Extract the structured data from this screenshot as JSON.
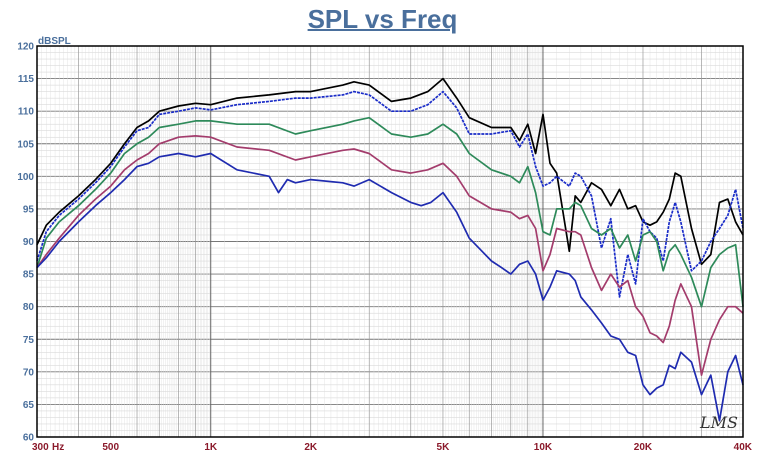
{
  "chart_data": {
    "type": "line",
    "title": "SPL vs Freq",
    "ylabel": "dBSPL",
    "xlabel": "",
    "xscale": "log",
    "xlim": [
      300,
      40000
    ],
    "ylim": [
      60,
      120
    ],
    "grid": true,
    "legend": "none",
    "yticks": [
      60,
      65,
      70,
      75,
      80,
      85,
      90,
      95,
      100,
      105,
      110,
      115,
      120
    ],
    "xtick_labels": [
      {
        "x": 300,
        "label": "300"
      },
      {
        "x": 500,
        "label": "500"
      },
      {
        "x": 1000,
        "label": "1K"
      },
      {
        "x": 2000,
        "label": "2K"
      },
      {
        "x": 5000,
        "label": "5K"
      },
      {
        "x": 10000,
        "label": "10K"
      },
      {
        "x": 20000,
        "label": "20K"
      },
      {
        "x": 40000,
        "label": "40K"
      }
    ],
    "x_unit_label": "Hz",
    "watermark": "LMS",
    "series": [
      {
        "color": "#000000",
        "x": [
          300,
          320,
          350,
          400,
          450,
          500,
          550,
          600,
          650,
          700,
          800,
          900,
          1000,
          1200,
          1500,
          1800,
          2000,
          2500,
          2700,
          3000,
          3500,
          4000,
          4500,
          5000,
          5500,
          6000,
          7000,
          8000,
          8500,
          9000,
          9500,
          10000,
          10500,
          11000,
          12000,
          12500,
          13000,
          14000,
          15000,
          16000,
          17000,
          18000,
          19000,
          20000,
          21000,
          22000,
          23000,
          24000,
          25000,
          26000,
          28000,
          30000,
          32000,
          34000,
          36000,
          38000,
          40000
        ],
        "y": [
          89.5,
          92.5,
          94.5,
          97,
          99.5,
          102,
          105,
          107.5,
          108.5,
          110,
          110.8,
          111.2,
          111,
          112,
          112.5,
          113,
          113,
          114,
          114.5,
          114,
          111.5,
          112,
          113,
          115,
          112,
          109,
          107.5,
          107.5,
          105.5,
          108,
          103.5,
          109.5,
          102,
          100.5,
          88.5,
          97,
          96,
          99,
          98,
          95.5,
          98,
          95,
          95.5,
          93,
          92.5,
          93,
          94.5,
          96.5,
          100.5,
          100,
          92,
          86.5,
          88,
          96,
          96.5,
          93,
          91
        ]
      },
      {
        "color": "#1a2cc8",
        "x": [
          300,
          320,
          350,
          400,
          450,
          500,
          550,
          600,
          650,
          700,
          800,
          900,
          1000,
          1200,
          1500,
          1800,
          2000,
          2500,
          2700,
          3000,
          3500,
          4000,
          4500,
          5000,
          5500,
          6000,
          7000,
          8000,
          8500,
          9000,
          9500,
          10000,
          10500,
          11000,
          12000,
          12500,
          13000,
          14000,
          15000,
          16000,
          17000,
          18000,
          19000,
          20000,
          21000,
          22000,
          23000,
          24000,
          25000,
          26000,
          28000,
          30000,
          32000,
          34000,
          36000,
          38000,
          40000
        ],
        "y": [
          87,
          91.5,
          94,
          96.5,
          99,
          101.5,
          104.5,
          107,
          107.5,
          109.5,
          110,
          110.5,
          110.2,
          111,
          111.5,
          112,
          112,
          112.5,
          113,
          112.5,
          110,
          110,
          111,
          113,
          110.5,
          106.5,
          106.5,
          107,
          104.5,
          106.5,
          101.5,
          98.5,
          99,
          100,
          98.5,
          100.5,
          100,
          97,
          89,
          93.5,
          81.5,
          88,
          83.5,
          93.5,
          91.5,
          90.5,
          87,
          93,
          96,
          93,
          85.5,
          87,
          90,
          92,
          94,
          98,
          92
        ]
      },
      {
        "color": "#2e8a5a",
        "x": [
          300,
          320,
          350,
          400,
          450,
          500,
          550,
          600,
          650,
          700,
          800,
          900,
          1000,
          1200,
          1500,
          1800,
          2000,
          2500,
          2700,
          3000,
          3500,
          4000,
          4500,
          5000,
          5500,
          6000,
          7000,
          8000,
          8500,
          9000,
          9500,
          10000,
          10500,
          11000,
          12000,
          12500,
          13000,
          14000,
          15000,
          16000,
          17000,
          18000,
          19000,
          20000,
          21000,
          22000,
          23000,
          24000,
          25000,
          26000,
          28000,
          30000,
          32000,
          34000,
          36000,
          38000,
          40000
        ],
        "y": [
          86,
          90.5,
          93,
          95.5,
          98,
          100.5,
          103.5,
          105,
          106,
          107.5,
          108,
          108.5,
          108.5,
          108,
          108,
          106.5,
          107,
          108,
          108.5,
          109,
          106.5,
          106,
          106.5,
          108,
          106.5,
          103.5,
          101,
          100,
          99,
          101.5,
          97.5,
          91.5,
          91,
          95,
          95,
          96,
          95.5,
          92,
          91,
          92,
          89,
          91,
          87,
          91,
          91.5,
          90,
          85.5,
          88.5,
          89.5,
          88,
          84.5,
          80,
          86,
          88,
          89,
          89.5,
          80
        ]
      },
      {
        "color": "#a33c6c",
        "x": [
          300,
          320,
          350,
          400,
          450,
          500,
          550,
          600,
          650,
          700,
          800,
          900,
          1000,
          1200,
          1500,
          1800,
          2000,
          2500,
          2700,
          3000,
          3500,
          4000,
          4500,
          5000,
          5500,
          6000,
          7000,
          8000,
          8500,
          9000,
          9500,
          10000,
          10500,
          11000,
          12000,
          12500,
          13000,
          14000,
          15000,
          16000,
          17000,
          18000,
          19000,
          20000,
          21000,
          22000,
          23000,
          24000,
          25000,
          26000,
          28000,
          30000,
          32000,
          34000,
          36000,
          38000,
          40000
        ],
        "y": [
          86,
          88,
          90.5,
          94,
          96.5,
          98.5,
          101,
          102.5,
          103.5,
          105,
          106,
          106.2,
          106,
          104.5,
          104,
          102.5,
          103,
          104,
          104.2,
          103.5,
          101,
          100.5,
          101,
          102,
          100,
          97,
          95,
          94.5,
          93.5,
          94,
          92,
          85.5,
          88,
          92,
          91.5,
          91.5,
          91,
          86,
          82.5,
          85,
          83,
          84,
          80,
          78.5,
          76,
          75.5,
          74.5,
          77,
          81,
          83.5,
          80,
          69.5,
          75,
          78,
          80,
          80,
          79
        ]
      },
      {
        "color": "#1f2bb0",
        "x": [
          300,
          320,
          350,
          400,
          450,
          500,
          550,
          600,
          650,
          700,
          800,
          900,
          1000,
          1200,
          1500,
          1600,
          1700,
          1800,
          2000,
          2500,
          2700,
          3000,
          3500,
          4000,
          4300,
          4600,
          5000,
          5500,
          6000,
          7000,
          7500,
          8000,
          8500,
          9000,
          9500,
          10000,
          10500,
          11000,
          12000,
          12500,
          13000,
          14000,
          15000,
          16000,
          17000,
          18000,
          19000,
          20000,
          21000,
          22000,
          23000,
          24000,
          25000,
          26000,
          28000,
          30000,
          32000,
          34000,
          36000,
          38000,
          40000
        ],
        "y": [
          86,
          87.5,
          90,
          93,
          95.5,
          97.5,
          99.5,
          101.5,
          102,
          103,
          103.5,
          103,
          103.5,
          101,
          100,
          97.5,
          99.5,
          99,
          99.5,
          99,
          98.5,
          99.5,
          97.5,
          96,
          95.5,
          96,
          97.5,
          94.5,
          90.5,
          87,
          86,
          85,
          86.5,
          87,
          85,
          81,
          83,
          85.5,
          85,
          84,
          81.5,
          79.5,
          77.5,
          75.5,
          75,
          73,
          72.5,
          68,
          66.5,
          67.5,
          68,
          71,
          70.5,
          73,
          71.5,
          66.5,
          69.5,
          62.5,
          70,
          72.5,
          68
        ]
      }
    ]
  }
}
